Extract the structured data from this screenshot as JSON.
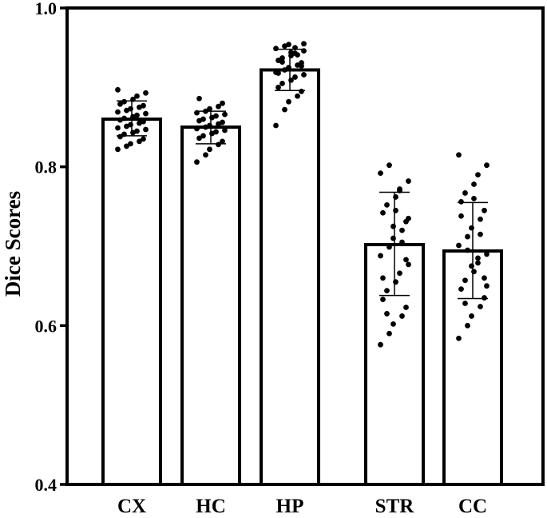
{
  "chart_data": {
    "type": "bar",
    "title": "",
    "xlabel": "",
    "ylabel": "Dice Scores",
    "ylim": [
      0.4,
      1.0
    ],
    "yticks": [
      "0.4",
      "0.6",
      "0.8",
      "1.0"
    ],
    "grid": false,
    "legend": "none",
    "error_bars": "sd",
    "categories": [
      "CX",
      "HC",
      "HP",
      "STR",
      "CC"
    ],
    "values": [
      0.86,
      0.85,
      0.922,
      0.702,
      0.694
    ],
    "error_low": [
      0.839,
      0.829,
      0.896,
      0.638,
      0.634
    ],
    "error_high": [
      0.883,
      0.87,
      0.948,
      0.768,
      0.755
    ],
    "points": [
      [
        0.822,
        0.826,
        0.829,
        0.832,
        0.835,
        0.838,
        0.841,
        0.843,
        0.845,
        0.847,
        0.849,
        0.851,
        0.853,
        0.855,
        0.857,
        0.859,
        0.861,
        0.863,
        0.865,
        0.867,
        0.869,
        0.871,
        0.873,
        0.875,
        0.877,
        0.879,
        0.882,
        0.885,
        0.889,
        0.893,
        0.897
      ],
      [
        0.806,
        0.815,
        0.822,
        0.828,
        0.832,
        0.836,
        0.839,
        0.842,
        0.844,
        0.846,
        0.848,
        0.85,
        0.852,
        0.854,
        0.856,
        0.858,
        0.86,
        0.862,
        0.864,
        0.866,
        0.868,
        0.87,
        0.873,
        0.876,
        0.88,
        0.886
      ],
      [
        0.852,
        0.872,
        0.882,
        0.889,
        0.895,
        0.9,
        0.905,
        0.909,
        0.913,
        0.916,
        0.919,
        0.922,
        0.925,
        0.928,
        0.931,
        0.934,
        0.937,
        0.94,
        0.943,
        0.946,
        0.949,
        0.952,
        0.954,
        0.941,
        0.927,
        0.918,
        0.932,
        0.944,
        0.95,
        0.955
      ],
      [
        0.576,
        0.59,
        0.602,
        0.612,
        0.623,
        0.633,
        0.644,
        0.655,
        0.666,
        0.677,
        0.688,
        0.699,
        0.71,
        0.72,
        0.731,
        0.742,
        0.752,
        0.762,
        0.772,
        0.782,
        0.792,
        0.802,
        0.725,
        0.705,
        0.683,
        0.66,
        0.615,
        0.745,
        0.77,
        0.735
      ],
      [
        0.584,
        0.6,
        0.612,
        0.624,
        0.635,
        0.646,
        0.657,
        0.668,
        0.679,
        0.69,
        0.701,
        0.712,
        0.723,
        0.734,
        0.745,
        0.756,
        0.767,
        0.778,
        0.79,
        0.802,
        0.815,
        0.695,
        0.675,
        0.715,
        0.66,
        0.738,
        0.628,
        0.76,
        0.685,
        0.65
      ]
    ]
  }
}
